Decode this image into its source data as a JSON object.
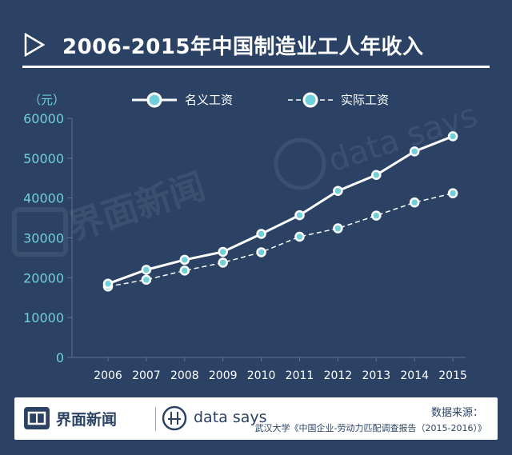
{
  "header": {
    "title": "2006-2015年中国制造业工人年收入"
  },
  "unit_label": "（元）",
  "legend": {
    "nominal": "名义工资",
    "real": "实际工资"
  },
  "watermark": {
    "left": "界面新闻",
    "right": "data says"
  },
  "footer": {
    "brand_cn": "界面新闻",
    "brand_en": "data says",
    "source_label": "数据来源：",
    "source_text": "武汉大学《中国企业-劳动力匹配调查报告（2015-2016）》"
  },
  "colors": {
    "background": "#2b4264",
    "accent": "#6fd0dc",
    "line": "#ffffff"
  },
  "chart_data": {
    "type": "line",
    "title": "2006-2015年中国制造业工人年收入",
    "ylabel": "（元）",
    "xlabel": "",
    "categories": [
      "2006",
      "2007",
      "2008",
      "2009",
      "2010",
      "2011",
      "2012",
      "2013",
      "2014",
      "2015"
    ],
    "yticks": [
      0,
      10000,
      20000,
      30000,
      40000,
      50000,
      60000
    ],
    "ylim": [
      0,
      60000
    ],
    "legend_position": "top",
    "grid": false,
    "series": [
      {
        "name": "名义工资",
        "style": "solid",
        "values": [
          18500,
          22000,
          24500,
          26500,
          31000,
          35700,
          41800,
          45800,
          51700,
          55500
        ]
      },
      {
        "name": "实际工资",
        "style": "dashed",
        "values": [
          17800,
          19500,
          21800,
          23800,
          26400,
          30300,
          32400,
          35600,
          38900,
          41200
        ]
      }
    ]
  }
}
